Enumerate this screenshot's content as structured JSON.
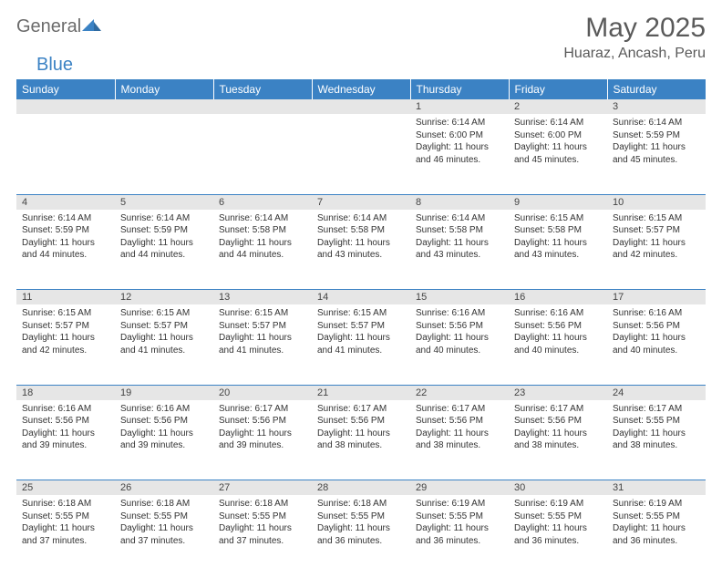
{
  "brand": {
    "name_part1": "General",
    "name_part2": "Blue",
    "accent_color": "#3b82c4",
    "text_color": "#6b6b6b"
  },
  "title": "May 2025",
  "location": "Huaraz, Ancash, Peru",
  "header_bg": "#3b82c4",
  "header_fg": "#ffffff",
  "daynum_bg": "#e6e6e6",
  "border_color": "#3b82c4",
  "day_names": [
    "Sunday",
    "Monday",
    "Tuesday",
    "Wednesday",
    "Thursday",
    "Friday",
    "Saturday"
  ],
  "weeks": [
    [
      null,
      null,
      null,
      null,
      {
        "n": "1",
        "sr": "6:14 AM",
        "ss": "6:00 PM",
        "dl": "11 hours and 46 minutes."
      },
      {
        "n": "2",
        "sr": "6:14 AM",
        "ss": "6:00 PM",
        "dl": "11 hours and 45 minutes."
      },
      {
        "n": "3",
        "sr": "6:14 AM",
        "ss": "5:59 PM",
        "dl": "11 hours and 45 minutes."
      }
    ],
    [
      {
        "n": "4",
        "sr": "6:14 AM",
        "ss": "5:59 PM",
        "dl": "11 hours and 44 minutes."
      },
      {
        "n": "5",
        "sr": "6:14 AM",
        "ss": "5:59 PM",
        "dl": "11 hours and 44 minutes."
      },
      {
        "n": "6",
        "sr": "6:14 AM",
        "ss": "5:58 PM",
        "dl": "11 hours and 44 minutes."
      },
      {
        "n": "7",
        "sr": "6:14 AM",
        "ss": "5:58 PM",
        "dl": "11 hours and 43 minutes."
      },
      {
        "n": "8",
        "sr": "6:14 AM",
        "ss": "5:58 PM",
        "dl": "11 hours and 43 minutes."
      },
      {
        "n": "9",
        "sr": "6:15 AM",
        "ss": "5:58 PM",
        "dl": "11 hours and 43 minutes."
      },
      {
        "n": "10",
        "sr": "6:15 AM",
        "ss": "5:57 PM",
        "dl": "11 hours and 42 minutes."
      }
    ],
    [
      {
        "n": "11",
        "sr": "6:15 AM",
        "ss": "5:57 PM",
        "dl": "11 hours and 42 minutes."
      },
      {
        "n": "12",
        "sr": "6:15 AM",
        "ss": "5:57 PM",
        "dl": "11 hours and 41 minutes."
      },
      {
        "n": "13",
        "sr": "6:15 AM",
        "ss": "5:57 PM",
        "dl": "11 hours and 41 minutes."
      },
      {
        "n": "14",
        "sr": "6:15 AM",
        "ss": "5:57 PM",
        "dl": "11 hours and 41 minutes."
      },
      {
        "n": "15",
        "sr": "6:16 AM",
        "ss": "5:56 PM",
        "dl": "11 hours and 40 minutes."
      },
      {
        "n": "16",
        "sr": "6:16 AM",
        "ss": "5:56 PM",
        "dl": "11 hours and 40 minutes."
      },
      {
        "n": "17",
        "sr": "6:16 AM",
        "ss": "5:56 PM",
        "dl": "11 hours and 40 minutes."
      }
    ],
    [
      {
        "n": "18",
        "sr": "6:16 AM",
        "ss": "5:56 PM",
        "dl": "11 hours and 39 minutes."
      },
      {
        "n": "19",
        "sr": "6:16 AM",
        "ss": "5:56 PM",
        "dl": "11 hours and 39 minutes."
      },
      {
        "n": "20",
        "sr": "6:17 AM",
        "ss": "5:56 PM",
        "dl": "11 hours and 39 minutes."
      },
      {
        "n": "21",
        "sr": "6:17 AM",
        "ss": "5:56 PM",
        "dl": "11 hours and 38 minutes."
      },
      {
        "n": "22",
        "sr": "6:17 AM",
        "ss": "5:56 PM",
        "dl": "11 hours and 38 minutes."
      },
      {
        "n": "23",
        "sr": "6:17 AM",
        "ss": "5:56 PM",
        "dl": "11 hours and 38 minutes."
      },
      {
        "n": "24",
        "sr": "6:17 AM",
        "ss": "5:55 PM",
        "dl": "11 hours and 38 minutes."
      }
    ],
    [
      {
        "n": "25",
        "sr": "6:18 AM",
        "ss": "5:55 PM",
        "dl": "11 hours and 37 minutes."
      },
      {
        "n": "26",
        "sr": "6:18 AM",
        "ss": "5:55 PM",
        "dl": "11 hours and 37 minutes."
      },
      {
        "n": "27",
        "sr": "6:18 AM",
        "ss": "5:55 PM",
        "dl": "11 hours and 37 minutes."
      },
      {
        "n": "28",
        "sr": "6:18 AM",
        "ss": "5:55 PM",
        "dl": "11 hours and 36 minutes."
      },
      {
        "n": "29",
        "sr": "6:19 AM",
        "ss": "5:55 PM",
        "dl": "11 hours and 36 minutes."
      },
      {
        "n": "30",
        "sr": "6:19 AM",
        "ss": "5:55 PM",
        "dl": "11 hours and 36 minutes."
      },
      {
        "n": "31",
        "sr": "6:19 AM",
        "ss": "5:55 PM",
        "dl": "11 hours and 36 minutes."
      }
    ]
  ],
  "labels": {
    "sunrise": "Sunrise: ",
    "sunset": "Sunset: ",
    "daylight": "Daylight: "
  }
}
